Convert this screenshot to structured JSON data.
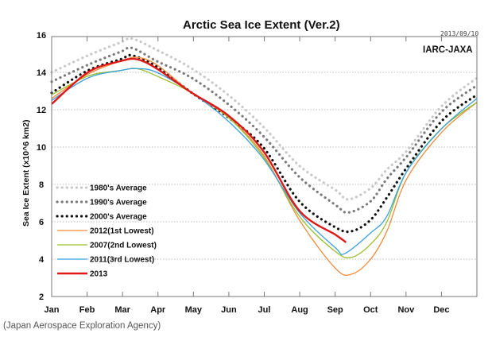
{
  "caption": "(Japan Aerospace Exploration Agency)",
  "chart_data": {
    "type": "line",
    "title": "Arctic Sea Ice Extent (Ver.2)",
    "date_stamp": "2013/09/10",
    "source_label": "IARC-JAXA",
    "xlabel": "",
    "ylabel": "Sea Ice Extent (x10^6 km2)",
    "x_unit": "day of year",
    "xlim": [
      1,
      365
    ],
    "ylim": [
      2,
      16
    ],
    "y_ticks": [
      2,
      4,
      6,
      8,
      10,
      12,
      14,
      16
    ],
    "x_tick_labels": [
      "Jan",
      "Feb",
      "Mar",
      "Apr",
      "May",
      "Jun",
      "Jul",
      "Aug",
      "Sep",
      "Oct",
      "Nov",
      "Dec"
    ],
    "grid": "horizontal dotted",
    "legend_position": "lower-left",
    "series": [
      {
        "name": "1980's Average",
        "color": "#c8c8c8",
        "style": "dotted",
        "points": [
          [
            1,
            14.0
          ],
          [
            32,
            14.9
          ],
          [
            60,
            15.6
          ],
          [
            70,
            15.8
          ],
          [
            91,
            15.2
          ],
          [
            121,
            14.2
          ],
          [
            152,
            12.8
          ],
          [
            182,
            11.1
          ],
          [
            213,
            9.0
          ],
          [
            244,
            7.7
          ],
          [
            255,
            7.2
          ],
          [
            274,
            7.8
          ],
          [
            288,
            8.8
          ],
          [
            305,
            9.8
          ],
          [
            335,
            12.2
          ],
          [
            365,
            13.7
          ]
        ]
      },
      {
        "name": "1990's Average",
        "color": "#7a7a7a",
        "style": "dotted",
        "points": [
          [
            1,
            13.5
          ],
          [
            32,
            14.4
          ],
          [
            60,
            15.1
          ],
          [
            70,
            15.3
          ],
          [
            91,
            14.6
          ],
          [
            121,
            13.7
          ],
          [
            152,
            12.3
          ],
          [
            182,
            10.6
          ],
          [
            213,
            8.4
          ],
          [
            244,
            6.9
          ],
          [
            255,
            6.5
          ],
          [
            274,
            7.1
          ],
          [
            288,
            8.3
          ],
          [
            305,
            9.5
          ],
          [
            335,
            11.9
          ],
          [
            365,
            13.3
          ]
        ]
      },
      {
        "name": "2000's Average",
        "color": "#111111",
        "style": "dotted",
        "points": [
          [
            1,
            12.9
          ],
          [
            32,
            14.1
          ],
          [
            60,
            14.7
          ],
          [
            70,
            14.9
          ],
          [
            91,
            14.3
          ],
          [
            121,
            12.9
          ],
          [
            152,
            11.6
          ],
          [
            182,
            10.0
          ],
          [
            213,
            7.1
          ],
          [
            244,
            5.7
          ],
          [
            258,
            5.5
          ],
          [
            274,
            6.1
          ],
          [
            288,
            7.3
          ],
          [
            305,
            8.9
          ],
          [
            335,
            11.4
          ],
          [
            365,
            12.8
          ]
        ]
      },
      {
        "name": "2012(1st Lowest)",
        "color": "#f08a3c",
        "style": "solid",
        "points": [
          [
            1,
            12.6
          ],
          [
            32,
            13.9
          ],
          [
            60,
            14.6
          ],
          [
            74,
            14.8
          ],
          [
            91,
            14.4
          ],
          [
            121,
            12.9
          ],
          [
            152,
            11.6
          ],
          [
            182,
            9.6
          ],
          [
            213,
            6.1
          ],
          [
            244,
            3.5
          ],
          [
            258,
            3.2
          ],
          [
            274,
            4.0
          ],
          [
            288,
            5.5
          ],
          [
            305,
            8.3
          ],
          [
            335,
            10.8
          ],
          [
            365,
            12.4
          ]
        ]
      },
      {
        "name": "2007(2nd Lowest)",
        "color": "#9cbf2e",
        "style": "solid",
        "points": [
          [
            1,
            12.8
          ],
          [
            32,
            13.8
          ],
          [
            60,
            14.1
          ],
          [
            74,
            14.2
          ],
          [
            91,
            13.8
          ],
          [
            121,
            12.9
          ],
          [
            152,
            11.6
          ],
          [
            182,
            9.5
          ],
          [
            213,
            6.3
          ],
          [
            244,
            4.4
          ],
          [
            258,
            4.1
          ],
          [
            274,
            4.8
          ],
          [
            288,
            6.0
          ],
          [
            305,
            8.7
          ],
          [
            335,
            11.0
          ],
          [
            365,
            12.4
          ]
        ]
      },
      {
        "name": "2011(3rd Lowest)",
        "color": "#3aa0e0",
        "style": "solid",
        "points": [
          [
            1,
            12.5
          ],
          [
            32,
            13.7
          ],
          [
            60,
            14.1
          ],
          [
            74,
            14.2
          ],
          [
            91,
            14.0
          ],
          [
            121,
            12.9
          ],
          [
            152,
            11.4
          ],
          [
            182,
            9.4
          ],
          [
            213,
            6.5
          ],
          [
            244,
            4.6
          ],
          [
            252,
            4.3
          ],
          [
            274,
            5.4
          ],
          [
            288,
            6.3
          ],
          [
            305,
            8.7
          ],
          [
            335,
            11.0
          ],
          [
            365,
            12.6
          ]
        ]
      },
      {
        "name": "2013",
        "color": "#e01818",
        "style": "solid-thick",
        "points": [
          [
            1,
            12.3
          ],
          [
            32,
            14.0
          ],
          [
            60,
            14.6
          ],
          [
            74,
            14.7
          ],
          [
            91,
            14.2
          ],
          [
            121,
            12.9
          ],
          [
            152,
            11.7
          ],
          [
            182,
            9.8
          ],
          [
            213,
            6.6
          ],
          [
            244,
            5.3
          ],
          [
            253,
            4.9
          ]
        ]
      }
    ]
  }
}
